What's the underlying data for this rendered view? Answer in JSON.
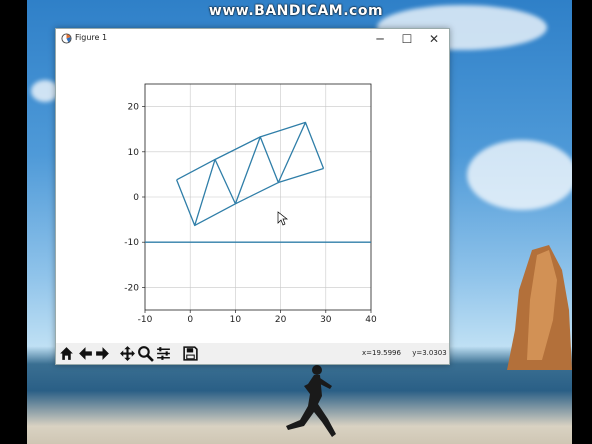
{
  "watermark": "www.BANDICAM.com",
  "window": {
    "title": "Figure 1",
    "app_icon": "matplotlib-icon",
    "controls": {
      "minimize": "─",
      "maximize": "☐",
      "close": "✕"
    }
  },
  "toolbar": {
    "buttons": [
      "home-icon",
      "back-icon",
      "forward-icon",
      "pan-icon",
      "zoom-icon",
      "configure-subplots-icon",
      "save-icon"
    ],
    "x_readout": "x=19.5996",
    "y_readout": "y=3.0303"
  },
  "chart_data": {
    "type": "line",
    "title": "",
    "xlabel": "",
    "ylabel": "",
    "xlim": [
      -10,
      40
    ],
    "ylim": [
      -25,
      25
    ],
    "xticks": [
      -10,
      0,
      10,
      20,
      30,
      40
    ],
    "yticks": [
      -20,
      -10,
      0,
      10,
      20
    ],
    "grid": true,
    "color": "#2f7ea8",
    "series": [
      {
        "x": [
          -3,
          1,
          5.5,
          10,
          15.5,
          19.5,
          25.5,
          29.5
        ],
        "y": [
          3.8,
          -6.3,
          8.3,
          -1.5,
          13.3,
          3.2,
          16.5,
          6.3
        ]
      },
      {
        "x": [
          -3,
          5.5,
          15.5,
          25.5
        ],
        "y": [
          3.8,
          8.3,
          13.3,
          16.5
        ]
      },
      {
        "x": [
          1,
          10,
          19.5,
          29.5
        ],
        "y": [
          -6.3,
          -1.5,
          3.2,
          6.3
        ]
      },
      {
        "x": [
          -10,
          40
        ],
        "y": [
          -10,
          -10
        ]
      }
    ]
  }
}
